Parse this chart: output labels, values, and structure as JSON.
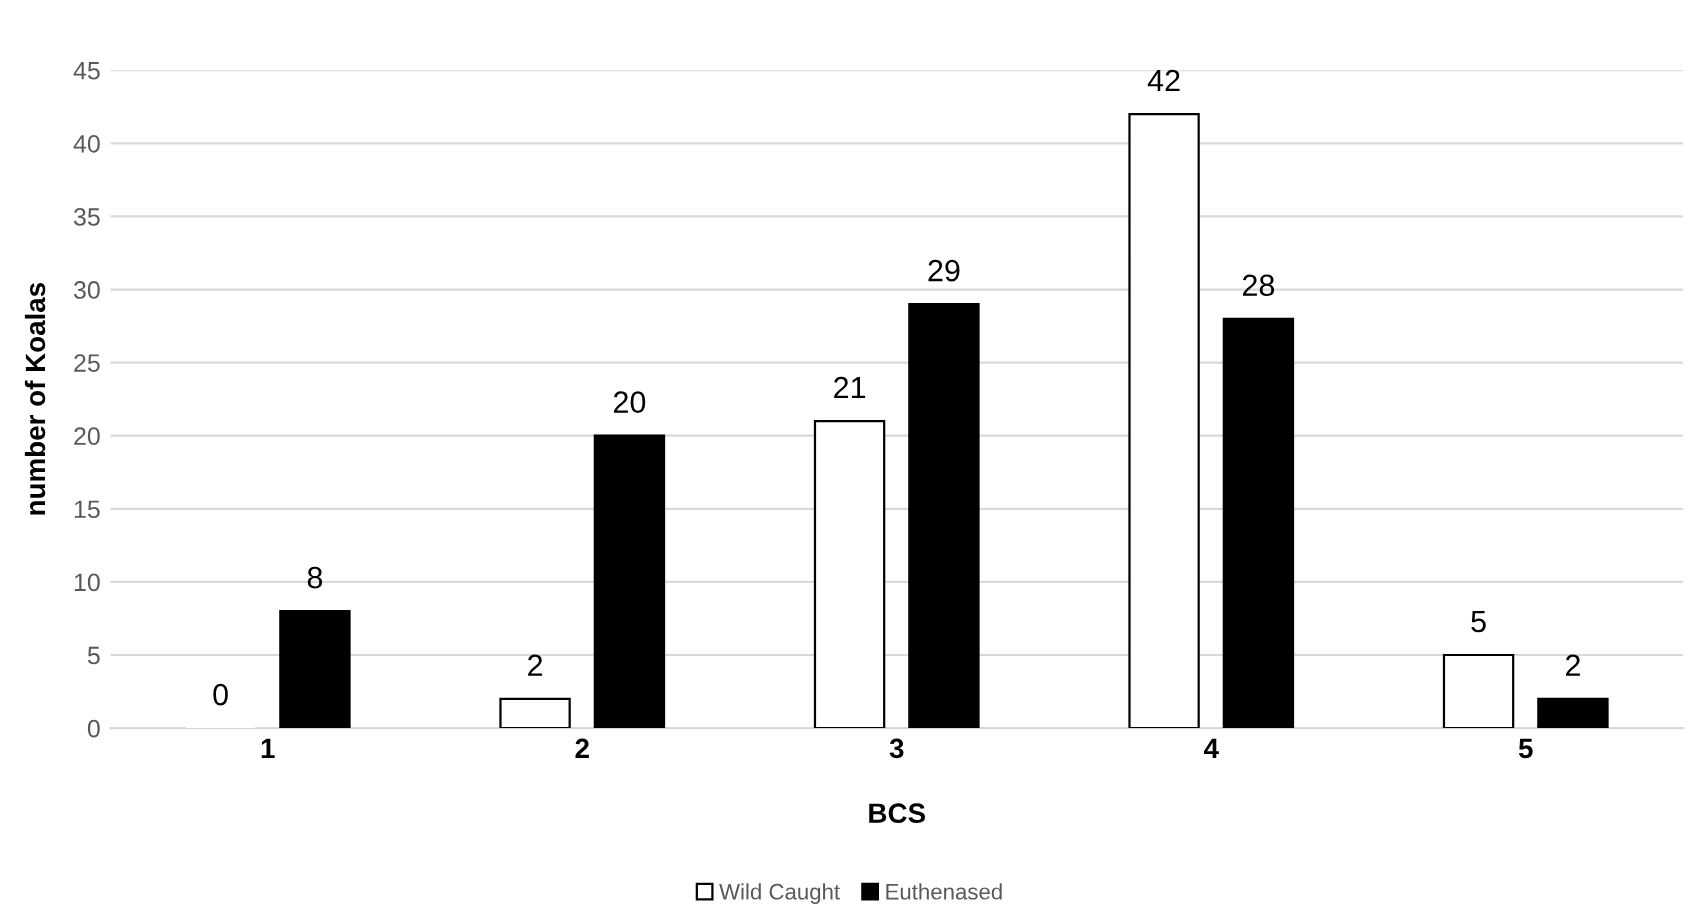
{
  "chart_data": {
    "type": "bar",
    "xlabel": "BCS",
    "ylabel": "number of Koalas",
    "categories": [
      "1",
      "2",
      "3",
      "4",
      "5"
    ],
    "series": [
      {
        "name": "Wild Caught",
        "color": "#ffffff",
        "values": [
          0,
          2,
          21,
          42,
          5
        ]
      },
      {
        "name": "Euthenased",
        "color": "#000000",
        "values": [
          8,
          20,
          29,
          28,
          2
        ]
      }
    ],
    "ylim": [
      0,
      45
    ],
    "yticks": [
      0,
      5,
      10,
      15,
      20,
      25,
      30,
      35,
      40,
      45
    ],
    "grid": "y",
    "legend": "bottom",
    "data_labels": true
  }
}
